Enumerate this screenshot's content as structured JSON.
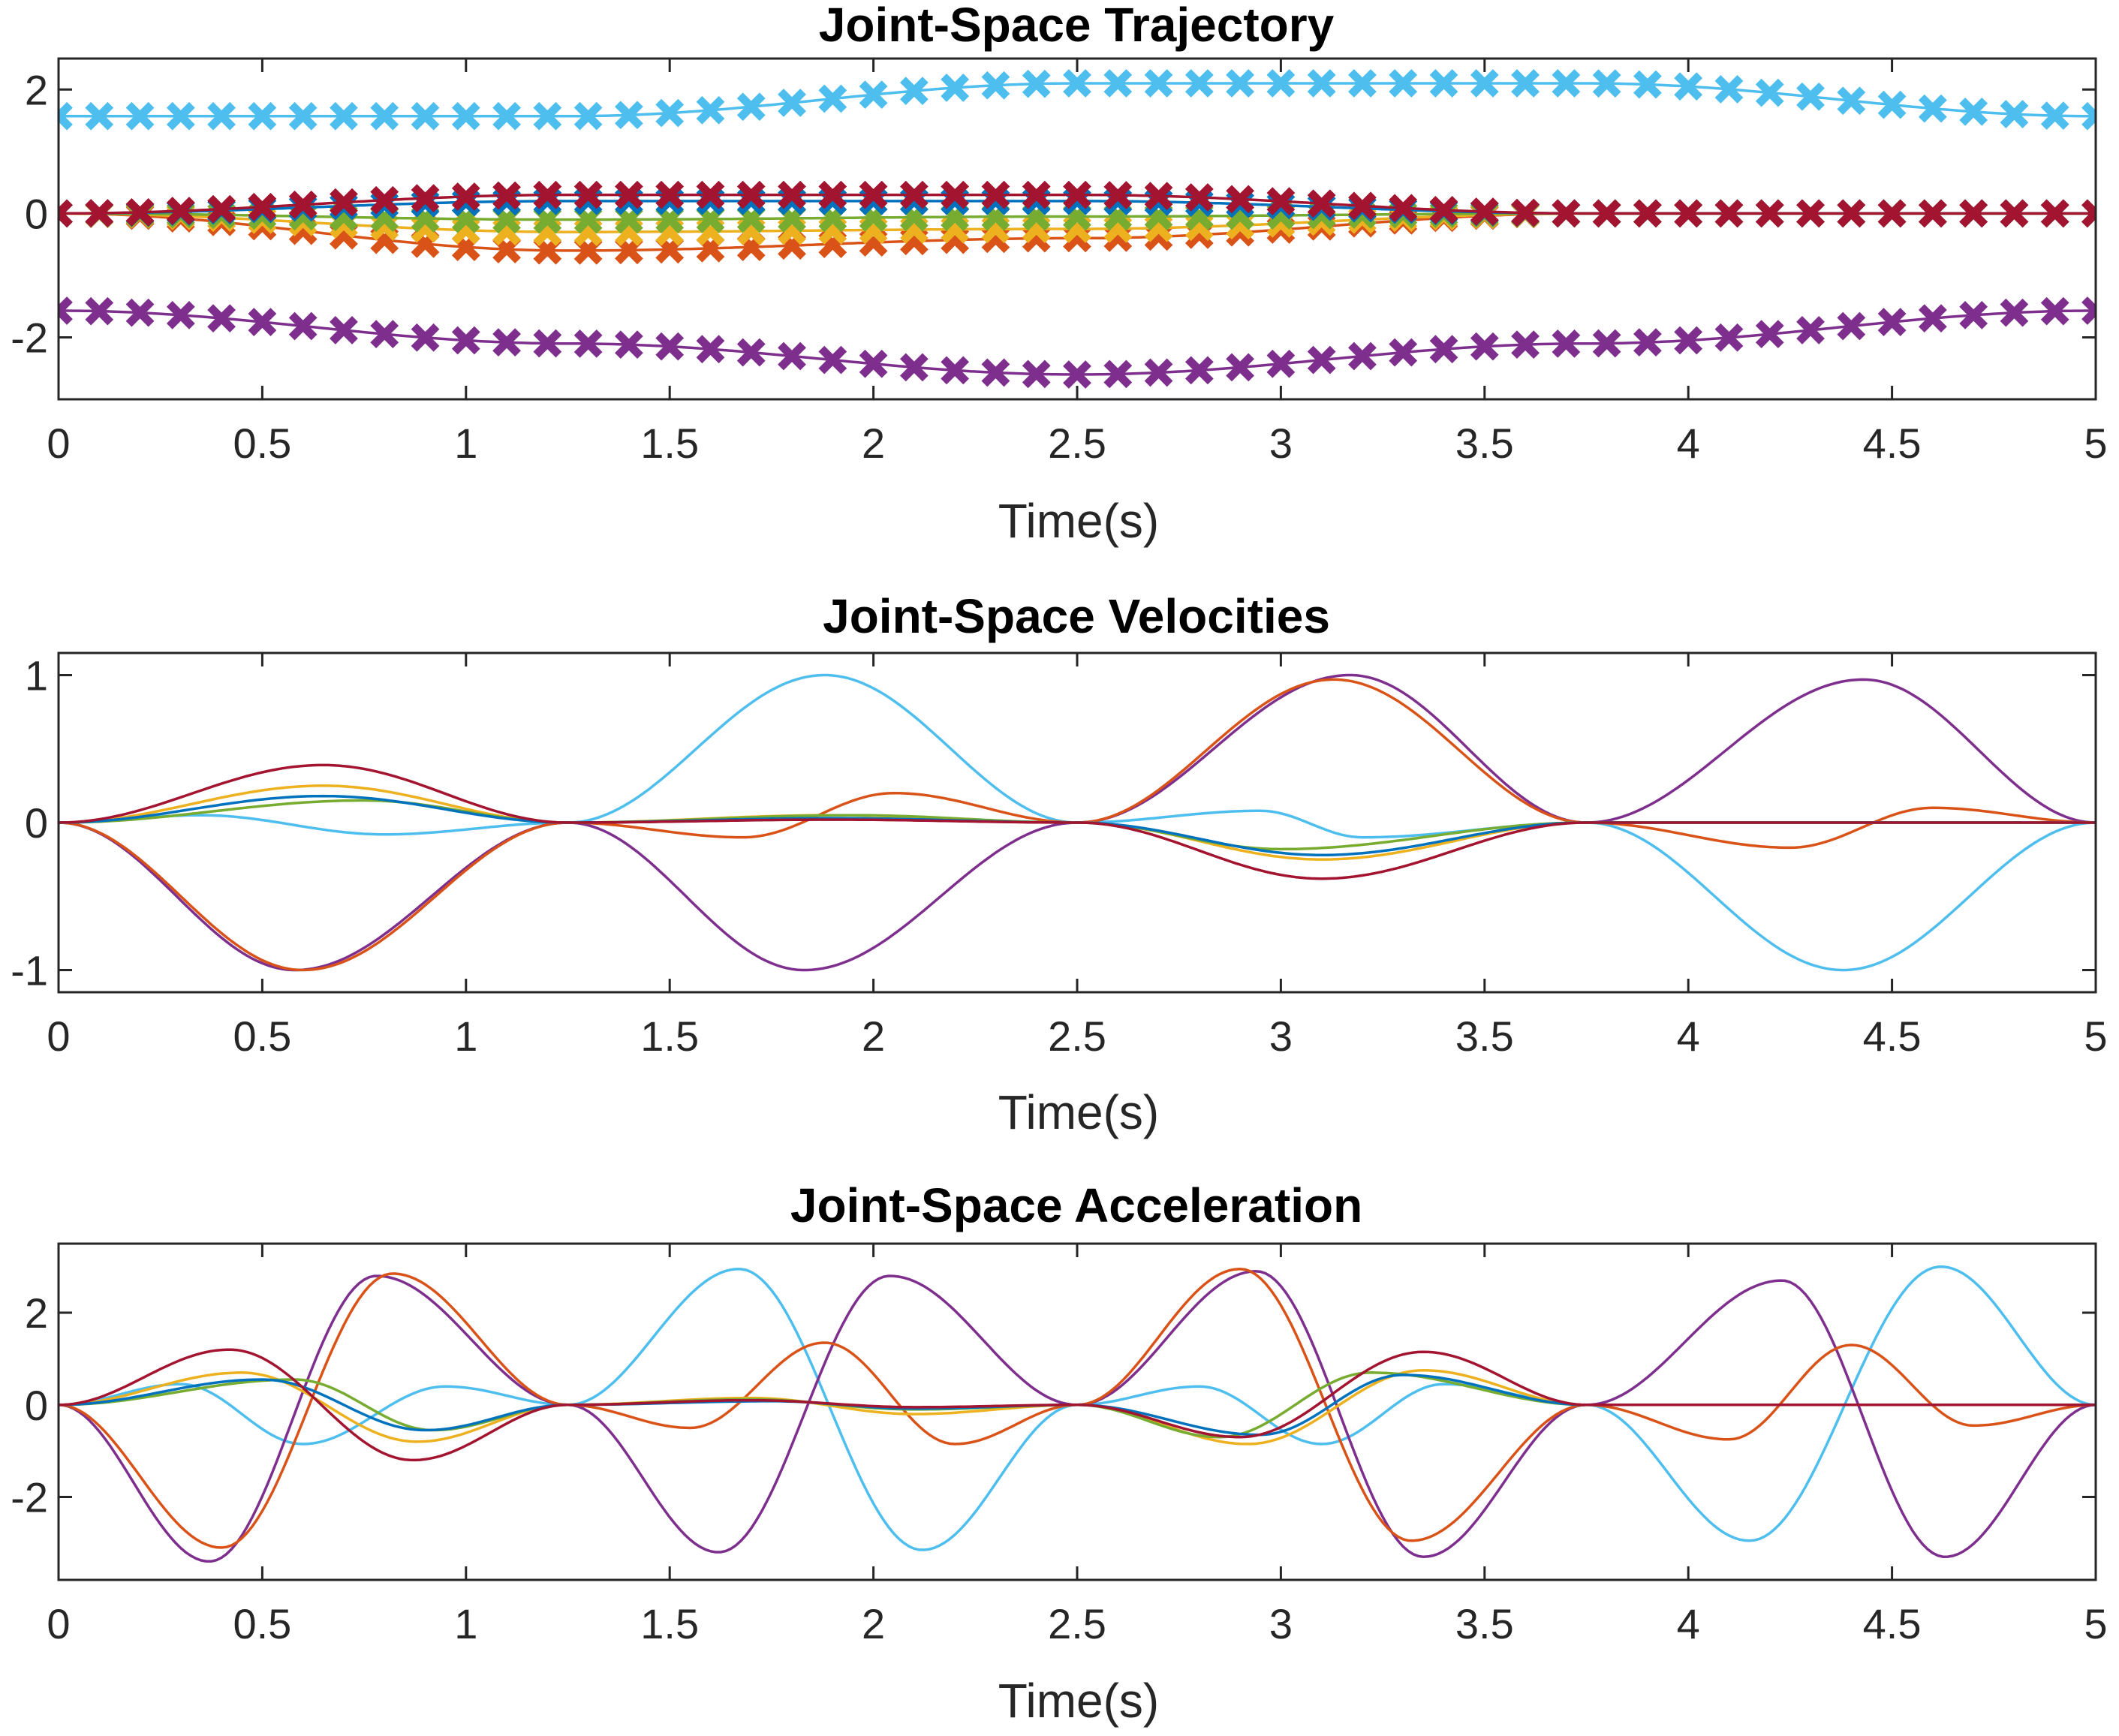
{
  "colors": {
    "blue": "#0072BD",
    "orange": "#D95319",
    "yellow": "#EDB120",
    "purple": "#7E2F8E",
    "green": "#77AC30",
    "cyan": "#4DBEEE",
    "maroon": "#A2142F",
    "axis": "#262626"
  },
  "chart_data": [
    {
      "type": "line",
      "marker": "x-cross",
      "title": "Joint-Space Trajectory",
      "xlabel": "Time(s)",
      "ylabel": "",
      "xlim": [
        0,
        5
      ],
      "ylim": [
        -3,
        2.5
      ],
      "xticks": [
        0,
        0.5,
        1,
        1.5,
        2,
        2.5,
        3,
        3.5,
        4,
        4.5,
        5
      ],
      "xtick_labels": [
        "0",
        "0.5",
        "1",
        "1.5",
        "2",
        "2.5",
        "3",
        "3.5",
        "4",
        "4.5",
        "5"
      ],
      "yticks": [
        -2,
        0,
        2
      ],
      "ytick_labels": [
        "-2",
        "0",
        "2"
      ],
      "series": [
        {
          "color": "cyan",
          "knots": [
            [
              0,
              1.57
            ],
            [
              1.25,
              1.57
            ],
            [
              2.5,
              2.1
            ],
            [
              3.75,
              2.1
            ],
            [
              5,
              1.57
            ]
          ]
        },
        {
          "color": "purple",
          "knots": [
            [
              0,
              -1.57
            ],
            [
              1.25,
              -2.1
            ],
            [
              2.5,
              -2.6
            ],
            [
              3.75,
              -2.1
            ],
            [
              5,
              -1.57
            ]
          ]
        },
        {
          "color": "orange",
          "knots": [
            [
              0,
              0
            ],
            [
              1.25,
              -0.6
            ],
            [
              2.5,
              -0.4
            ],
            [
              3.75,
              0
            ],
            [
              5,
              0
            ]
          ]
        },
        {
          "color": "yellow",
          "knots": [
            [
              0,
              0
            ],
            [
              1.25,
              -0.3
            ],
            [
              2.5,
              -0.25
            ],
            [
              3.75,
              0
            ],
            [
              5,
              0
            ]
          ]
        },
        {
          "color": "green",
          "knots": [
            [
              0,
              0
            ],
            [
              1.25,
              -0.1
            ],
            [
              2.5,
              -0.05
            ],
            [
              3.75,
              0
            ],
            [
              5,
              0
            ]
          ]
        },
        {
          "color": "blue",
          "knots": [
            [
              0,
              0
            ],
            [
              1.25,
              0.2
            ],
            [
              2.5,
              0.2
            ],
            [
              3.75,
              0
            ],
            [
              5,
              0
            ]
          ]
        },
        {
          "color": "maroon",
          "knots": [
            [
              0,
              0
            ],
            [
              1.25,
              0.3
            ],
            [
              2.5,
              0.3
            ],
            [
              3.75,
              0
            ],
            [
              5,
              0
            ]
          ]
        }
      ]
    },
    {
      "type": "line",
      "title": "Joint-Space Velocities",
      "xlabel": "Time(s)",
      "ylabel": "",
      "xlim": [
        0,
        5
      ],
      "ylim": [
        -1.15,
        1.15
      ],
      "xticks": [
        0,
        0.5,
        1,
        1.5,
        2,
        2.5,
        3,
        3.5,
        4,
        4.5,
        5
      ],
      "xtick_labels": [
        "0",
        "0.5",
        "1",
        "1.5",
        "2",
        "2.5",
        "3",
        "3.5",
        "4",
        "4.5",
        "5"
      ],
      "yticks": [
        -1,
        0,
        1
      ],
      "ytick_labels": [
        "-1",
        "0",
        "1"
      ],
      "series": [
        {
          "color": "cyan",
          "knots": [
            [
              0,
              0
            ],
            [
              0.35,
              0.05
            ],
            [
              0.8,
              -0.08
            ],
            [
              1.25,
              0
            ],
            [
              1.88,
              1.0
            ],
            [
              2.5,
              0
            ],
            [
              2.95,
              0.08
            ],
            [
              3.2,
              -0.1
            ],
            [
              3.75,
              0
            ],
            [
              4.38,
              -1.0
            ],
            [
              5,
              0
            ]
          ]
        },
        {
          "color": "purple",
          "knots": [
            [
              0,
              0
            ],
            [
              0.58,
              -1.0
            ],
            [
              1.25,
              0
            ],
            [
              1.83,
              -1.0
            ],
            [
              2.5,
              0
            ],
            [
              3.17,
              1.0
            ],
            [
              3.75,
              0
            ],
            [
              4.43,
              0.97
            ],
            [
              5,
              0
            ]
          ]
        },
        {
          "color": "orange",
          "knots": [
            [
              0,
              0
            ],
            [
              0.6,
              -1.0
            ],
            [
              1.25,
              0
            ],
            [
              1.68,
              -0.1
            ],
            [
              2.05,
              0.2
            ],
            [
              2.5,
              0
            ],
            [
              3.13,
              0.97
            ],
            [
              3.75,
              0
            ],
            [
              4.25,
              -0.17
            ],
            [
              4.6,
              0.1
            ],
            [
              5,
              0
            ]
          ]
        },
        {
          "color": "yellow",
          "knots": [
            [
              0,
              0
            ],
            [
              0.65,
              0.25
            ],
            [
              1.25,
              0
            ],
            [
              1.9,
              0.05
            ],
            [
              2.5,
              0
            ],
            [
              3.1,
              -0.25
            ],
            [
              3.75,
              0
            ],
            [
              5,
              0
            ]
          ]
        },
        {
          "color": "green",
          "knots": [
            [
              0,
              0
            ],
            [
              0.75,
              0.15
            ],
            [
              1.25,
              0
            ],
            [
              1.95,
              0.05
            ],
            [
              2.5,
              0
            ],
            [
              3.0,
              -0.18
            ],
            [
              3.75,
              0
            ],
            [
              5,
              0
            ]
          ]
        },
        {
          "color": "blue",
          "knots": [
            [
              0,
              0
            ],
            [
              0.65,
              0.18
            ],
            [
              1.25,
              0
            ],
            [
              1.9,
              0.03
            ],
            [
              2.5,
              0
            ],
            [
              3.1,
              -0.22
            ],
            [
              3.75,
              0
            ],
            [
              5,
              0
            ]
          ]
        },
        {
          "color": "maroon",
          "knots": [
            [
              0,
              0
            ],
            [
              0.65,
              0.39
            ],
            [
              1.25,
              0
            ],
            [
              1.9,
              0.02
            ],
            [
              2.5,
              0
            ],
            [
              3.1,
              -0.38
            ],
            [
              3.75,
              0
            ],
            [
              5,
              0
            ]
          ]
        }
      ]
    },
    {
      "type": "line",
      "title": "Joint-Space Acceleration",
      "xlabel": "Time(s)",
      "ylabel": "",
      "xlim": [
        0,
        5
      ],
      "ylim": [
        -3.8,
        3.5
      ],
      "xticks": [
        0,
        0.5,
        1,
        1.5,
        2,
        2.5,
        3,
        3.5,
        4,
        4.5,
        5
      ],
      "xtick_labels": [
        "0",
        "0.5",
        "1",
        "1.5",
        "2",
        "2.5",
        "3",
        "3.5",
        "4",
        "4.5",
        "5"
      ],
      "yticks": [
        -2,
        0,
        2
      ],
      "ytick_labels": [
        "-2",
        "0",
        "2"
      ],
      "series": [
        {
          "color": "cyan",
          "knots": [
            [
              0,
              0
            ],
            [
              0.3,
              0.45
            ],
            [
              0.6,
              -0.85
            ],
            [
              0.95,
              0.4
            ],
            [
              1.25,
              0
            ],
            [
              1.67,
              2.95
            ],
            [
              2.12,
              -3.15
            ],
            [
              2.5,
              0
            ],
            [
              2.8,
              0.4
            ],
            [
              3.1,
              -0.85
            ],
            [
              3.4,
              0.45
            ],
            [
              3.75,
              0
            ],
            [
              4.15,
              -2.95
            ],
            [
              4.62,
              3.0
            ],
            [
              5,
              0
            ]
          ]
        },
        {
          "color": "purple",
          "knots": [
            [
              0,
              0
            ],
            [
              0.37,
              -3.4
            ],
            [
              0.78,
              2.8
            ],
            [
              1.25,
              0
            ],
            [
              1.62,
              -3.2
            ],
            [
              2.04,
              2.8
            ],
            [
              2.5,
              0
            ],
            [
              2.94,
              2.9
            ],
            [
              3.35,
              -3.3
            ],
            [
              3.75,
              0
            ],
            [
              4.23,
              2.7
            ],
            [
              4.63,
              -3.3
            ],
            [
              5,
              0
            ]
          ]
        },
        {
          "color": "orange",
          "knots": [
            [
              0,
              0
            ],
            [
              0.4,
              -3.1
            ],
            [
              0.82,
              2.85
            ],
            [
              1.25,
              0
            ],
            [
              1.55,
              -0.5
            ],
            [
              1.88,
              1.35
            ],
            [
              2.2,
              -0.85
            ],
            [
              2.5,
              0
            ],
            [
              2.9,
              2.95
            ],
            [
              3.32,
              -2.95
            ],
            [
              3.75,
              0
            ],
            [
              4.1,
              -0.75
            ],
            [
              4.4,
              1.3
            ],
            [
              4.7,
              -0.45
            ],
            [
              5,
              0
            ]
          ]
        },
        {
          "color": "yellow",
          "knots": [
            [
              0,
              0
            ],
            [
              0.45,
              0.7
            ],
            [
              0.88,
              -0.8
            ],
            [
              1.25,
              0
            ],
            [
              1.7,
              0.15
            ],
            [
              2.1,
              -0.2
            ],
            [
              2.5,
              0
            ],
            [
              2.92,
              -0.85
            ],
            [
              3.35,
              0.75
            ],
            [
              3.75,
              0
            ],
            [
              5,
              0
            ]
          ]
        },
        {
          "color": "green",
          "knots": [
            [
              0,
              0
            ],
            [
              0.58,
              0.55
            ],
            [
              0.92,
              -0.55
            ],
            [
              1.25,
              0
            ],
            [
              1.7,
              0.12
            ],
            [
              2.1,
              -0.1
            ],
            [
              2.5,
              0
            ],
            [
              2.85,
              -0.7
            ],
            [
              3.22,
              0.7
            ],
            [
              3.75,
              0
            ],
            [
              5,
              0
            ]
          ]
        },
        {
          "color": "blue",
          "knots": [
            [
              0,
              0
            ],
            [
              0.5,
              0.55
            ],
            [
              0.9,
              -0.55
            ],
            [
              1.25,
              0
            ],
            [
              1.75,
              0.08
            ],
            [
              2.1,
              -0.08
            ],
            [
              2.5,
              0
            ],
            [
              2.95,
              -0.65
            ],
            [
              3.3,
              0.65
            ],
            [
              3.75,
              0
            ],
            [
              5,
              0
            ]
          ]
        },
        {
          "color": "maroon",
          "knots": [
            [
              0,
              0
            ],
            [
              0.42,
              1.2
            ],
            [
              0.87,
              -1.2
            ],
            [
              1.25,
              0
            ],
            [
              1.7,
              0.1
            ],
            [
              2.1,
              -0.05
            ],
            [
              2.5,
              0
            ],
            [
              2.9,
              -0.7
            ],
            [
              3.35,
              1.15
            ],
            [
              3.75,
              0
            ],
            [
              5,
              0
            ]
          ]
        }
      ]
    }
  ]
}
